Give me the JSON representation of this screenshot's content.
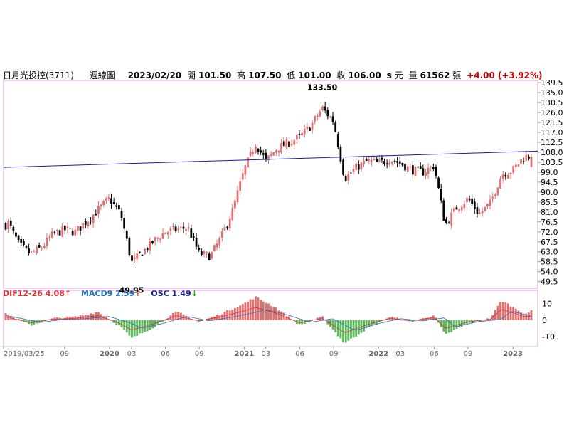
{
  "header": {
    "name": "日月光投控(3711)",
    "period": "週線圖",
    "date": "2023/02/20",
    "open_label": "開",
    "open": "101.50",
    "high_label": "高",
    "high": "107.50",
    "low_label": "低",
    "low": "101.00",
    "close_label": "收",
    "close": "106.00",
    "unit_s": "s",
    "currency": "元",
    "volume_label": "量",
    "volume": "61562",
    "volume_unit": "張",
    "change": "+4.00",
    "change_pct": "(+3.92%)"
  },
  "indicators": {
    "dif_label": "DIF12-26",
    "dif_value": "4.08",
    "dif_arrow": "↑",
    "macd_label": "MACD9",
    "macd_value": "2.59",
    "macd_arrow": "↑",
    "osc_label": "OSC",
    "osc_value": "1.49",
    "osc_arrow": "↓"
  },
  "colors": {
    "up": "#e07070",
    "down": "#000000",
    "trendline": "#1a1aa0",
    "frame": "#d8a0d8",
    "osc_pos": "#e07070",
    "osc_neg": "#5cb85c",
    "dif_line": "#e03030",
    "macd_line": "#1f74c4"
  },
  "chart_data": [
    {
      "type": "candlestick",
      "title": "日月光投控(3711) 週線圖",
      "x_tick_labels": [
        "2019/03/25",
        "09",
        "2020",
        "03",
        "06",
        "09",
        "2021",
        "03",
        "06",
        "09",
        "2022",
        "03",
        "06",
        "09",
        "2023"
      ],
      "y_ticks": [
        139.5,
        135.0,
        130.5,
        126.0,
        121.5,
        117.0,
        112.5,
        108.0,
        103.5,
        99.0,
        94.5,
        90.0,
        85.5,
        81.0,
        76.5,
        72.0,
        67.5,
        63.0,
        58.5,
        54.0,
        49.5
      ],
      "ylim": [
        46.5,
        140.5
      ],
      "annotations": [
        {
          "label": "133.50",
          "date": "2021/08",
          "value": 133.5
        },
        {
          "label": "49.95",
          "date": "2020/03",
          "value": 49.95
        }
      ],
      "trendline": {
        "start": {
          "date": "2019/03/25",
          "value": 101.2
        },
        "end": {
          "date": "2023/02/20",
          "value": 108.5
        }
      },
      "close_path": [
        [
          "2019/03",
          72
        ],
        [
          "2019/04",
          76
        ],
        [
          "2019/05",
          66
        ],
        [
          "2019/06",
          62
        ],
        [
          "2019/07",
          65
        ],
        [
          "2019/08",
          71
        ],
        [
          "2019/09",
          73
        ],
        [
          "2019/10",
          72
        ],
        [
          "2019/11",
          77
        ],
        [
          "2019/12",
          82
        ],
        [
          "2020/01",
          87
        ],
        [
          "2020/02",
          80
        ],
        [
          "2020/03",
          58
        ],
        [
          "2020/04",
          63
        ],
        [
          "2020/05",
          68
        ],
        [
          "2020/06",
          72
        ],
        [
          "2020/07",
          73
        ],
        [
          "2020/08",
          74
        ],
        [
          "2020/09",
          62
        ],
        [
          "2020/10",
          61
        ],
        [
          "2020/11",
          70
        ],
        [
          "2020/12",
          82
        ],
        [
          "2021/01",
          100
        ],
        [
          "2021/02",
          112
        ],
        [
          "2021/03",
          104
        ],
        [
          "2021/04",
          110
        ],
        [
          "2021/05",
          112
        ],
        [
          "2021/06",
          115
        ],
        [
          "2021/07",
          120
        ],
        [
          "2021/08",
          128
        ],
        [
          "2021/09",
          122
        ],
        [
          "2021/10",
          96
        ],
        [
          "2021/11",
          101
        ],
        [
          "2021/12",
          104
        ],
        [
          "2022/01",
          103
        ],
        [
          "2022/02",
          105
        ],
        [
          "2022/03",
          103
        ],
        [
          "2022/04",
          100
        ],
        [
          "2022/05",
          99
        ],
        [
          "2022/06",
          102
        ],
        [
          "2022/07",
          75
        ],
        [
          "2022/08",
          83
        ],
        [
          "2022/09",
          87
        ],
        [
          "2022/10",
          80
        ],
        [
          "2022/11",
          85
        ],
        [
          "2022/12",
          98
        ],
        [
          "2023/01",
          100
        ],
        [
          "2023/02",
          106
        ]
      ]
    },
    {
      "type": "bar",
      "title": "MACD",
      "y_ticks": [
        10,
        0,
        -10
      ],
      "ylim": [
        -16,
        18
      ],
      "series": [
        {
          "name": "DIF12-26",
          "last": 4.08
        },
        {
          "name": "MACD9",
          "last": 2.59
        },
        {
          "name": "OSC",
          "last": 1.49
        }
      ],
      "osc_path": [
        [
          "2019/03",
          6
        ],
        [
          "2019/06",
          -3
        ],
        [
          "2019/08",
          1
        ],
        [
          "2019/10",
          2
        ],
        [
          "2019/12",
          5
        ],
        [
          "2020/02",
          -4
        ],
        [
          "2020/03",
          -11
        ],
        [
          "2020/05",
          -4
        ],
        [
          "2020/07",
          5
        ],
        [
          "2020/09",
          -1
        ],
        [
          "2020/11",
          4
        ],
        [
          "2021/01",
          10
        ],
        [
          "2021/02",
          14
        ],
        [
          "2021/04",
          7
        ],
        [
          "2021/06",
          -3
        ],
        [
          "2021/08",
          2
        ],
        [
          "2021/10",
          -14
        ],
        [
          "2021/12",
          -5
        ],
        [
          "2022/02",
          2
        ],
        [
          "2022/04",
          -1
        ],
        [
          "2022/06",
          3
        ],
        [
          "2022/07",
          -9
        ],
        [
          "2022/09",
          -2
        ],
        [
          "2022/11",
          1
        ],
        [
          "2022/12",
          12
        ],
        [
          "2023/02",
          4
        ]
      ]
    }
  ]
}
